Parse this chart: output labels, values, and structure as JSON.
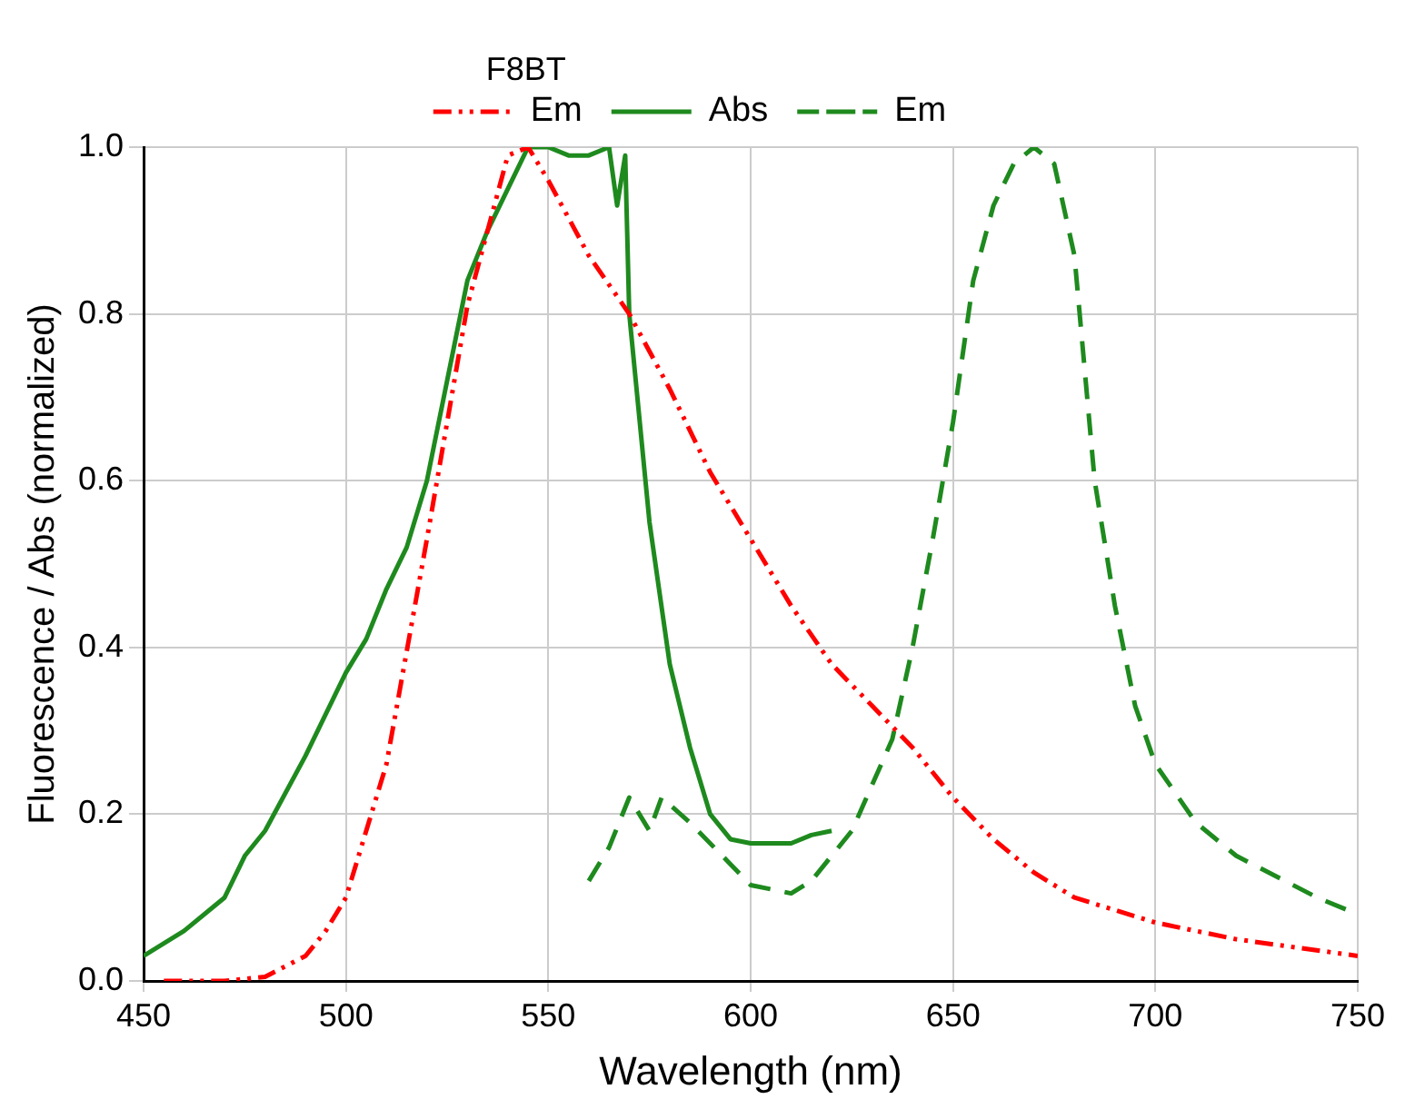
{
  "chart_data": {
    "type": "line",
    "xlabel": "Wavelength (nm)",
    "ylabel": "Fluorescence / Abs (normalized)",
    "annotations": [
      "F8BT"
    ],
    "legend": "top",
    "grid": true,
    "marker": "none",
    "xlim": [
      450,
      750
    ],
    "xticks": [
      450,
      500,
      550,
      600,
      650,
      700,
      750
    ],
    "ylim": [
      0,
      1
    ],
    "yticks": [
      {
        "value": 0,
        "label": "0.0"
      },
      {
        "value": 0.2,
        "label": "0.2"
      },
      {
        "value": 0.4,
        "label": "0.4"
      },
      {
        "value": 0.6,
        "label": "0.6"
      },
      {
        "value": 0.8,
        "label": "0.8"
      },
      {
        "value": 1,
        "label": "1.0"
      }
    ],
    "series": [
      {
        "name": "Em",
        "color": "#ff0000",
        "line_style": "dashed",
        "x": [
          455,
          470,
          480,
          490,
          495,
          500,
          510,
          520,
          530,
          540,
          545,
          550,
          560,
          570,
          580,
          590,
          600,
          610,
          620,
          630,
          640,
          650,
          660,
          670,
          680,
          700,
          720,
          750
        ],
        "values": [
          0,
          0,
          0.005,
          0.03,
          0.06,
          0.1,
          0.26,
          0.53,
          0.81,
          0.99,
          1.0,
          0.96,
          0.87,
          0.8,
          0.71,
          0.61,
          0.53,
          0.45,
          0.38,
          0.33,
          0.28,
          0.22,
          0.17,
          0.13,
          0.1,
          0.07,
          0.05,
          0.03
        ]
      },
      {
        "name": "Abs",
        "color": "#1e8a1e",
        "line_style": "solid",
        "x": [
          450,
          460,
          470,
          475,
          480,
          490,
          500,
          505,
          510,
          515,
          520,
          525,
          530,
          535,
          540,
          545,
          550,
          555,
          560,
          565,
          567,
          569,
          570,
          575,
          580,
          585,
          590,
          595,
          600,
          610,
          615,
          620
        ],
        "values": [
          0.03,
          0.06,
          0.1,
          0.15,
          0.18,
          0.27,
          0.37,
          0.41,
          0.47,
          0.52,
          0.6,
          0.72,
          0.84,
          0.9,
          0.95,
          1.0,
          1.0,
          0.99,
          0.99,
          1.0,
          0.93,
          0.99,
          0.8,
          0.55,
          0.38,
          0.28,
          0.2,
          0.17,
          0.165,
          0.165,
          0.175,
          0.18
        ]
      },
      {
        "name": "Em",
        "color": "#1e8a1e",
        "line_style": "dashed",
        "x": [
          560,
          565,
          570,
          575,
          578,
          585,
          595,
          600,
          610,
          615,
          625,
          635,
          640,
          645,
          650,
          655,
          660,
          665,
          670,
          675,
          680,
          685,
          690,
          695,
          700,
          710,
          720,
          740,
          750
        ],
        "values": [
          0.12,
          0.16,
          0.22,
          0.18,
          0.22,
          0.19,
          0.14,
          0.115,
          0.105,
          0.12,
          0.18,
          0.29,
          0.4,
          0.53,
          0.67,
          0.84,
          0.93,
          0.98,
          1.0,
          0.98,
          0.87,
          0.6,
          0.45,
          0.33,
          0.26,
          0.19,
          0.15,
          0.1,
          0.08
        ]
      }
    ]
  }
}
